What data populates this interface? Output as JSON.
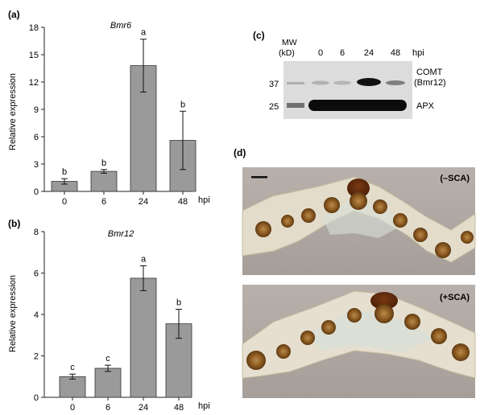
{
  "panels": {
    "a": "(a)",
    "b": "(b)",
    "c": "(c)",
    "d": "(d)"
  },
  "colors": {
    "bar_fill": "#9a9a9a",
    "axis": "#222222",
    "blot_bg": "#dcdcdc",
    "band": "#111111",
    "section_bg": "#b2aaa4",
    "cell_brown": "#8a5a1f"
  },
  "chart_data": [
    {
      "type": "bar",
      "panel": "a",
      "title": "Bmr6",
      "ylabel": "Relative expression",
      "xlabel": "hpi",
      "categories": [
        "0",
        "6",
        "24",
        "48"
      ],
      "values": [
        1.1,
        2.2,
        13.8,
        5.6
      ],
      "errors": [
        0.3,
        0.2,
        2.9,
        3.2
      ],
      "letters": [
        "b",
        "b",
        "a",
        "b"
      ],
      "ylim": [
        0,
        18
      ],
      "yticks": [
        0,
        3,
        6,
        9,
        12,
        15,
        18
      ]
    },
    {
      "type": "bar",
      "panel": "b",
      "title": "Bmr12",
      "ylabel": "Relative expression",
      "xlabel": "hpi",
      "categories": [
        "0",
        "6",
        "24",
        "48"
      ],
      "values": [
        1.0,
        1.4,
        5.75,
        3.55
      ],
      "errors": [
        0.12,
        0.15,
        0.6,
        0.7
      ],
      "letters": [
        "c",
        "c",
        "a",
        "b"
      ],
      "ylim": [
        0,
        8
      ],
      "yticks": [
        0,
        2,
        4,
        6,
        8
      ]
    }
  ],
  "blot": {
    "mw_header": "MW",
    "kd_header": "(kD)",
    "lanes": [
      "0",
      "6",
      "24",
      "48"
    ],
    "unit": "hpi",
    "mw_markers": [
      "37",
      "25"
    ],
    "band_labels": {
      "comt": "COMT",
      "bmr12": "(Bmr12)",
      "apx": "APX"
    }
  },
  "sections": {
    "minus_label": "(–SCA)",
    "plus_label": "(+SCA)"
  }
}
